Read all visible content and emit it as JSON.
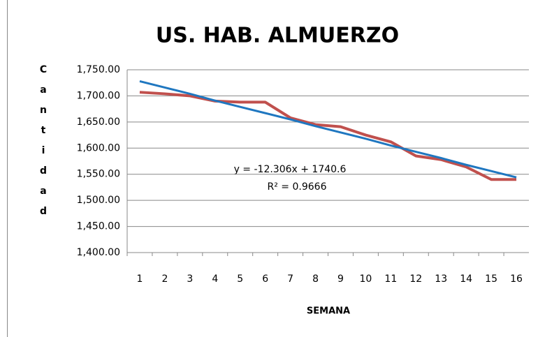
{
  "chart_data": {
    "type": "line",
    "title": "US. HAB. ALMUERZO",
    "x_label": "SEMANA",
    "y_label": "Cantidad",
    "categories": [
      "1",
      "2",
      "3",
      "4",
      "5",
      "6",
      "7",
      "8",
      "9",
      "10",
      "11",
      "12",
      "13",
      "14",
      "15",
      "16"
    ],
    "series": [
      {
        "color": "#c0504d",
        "values": [
          1707,
          1704,
          1700,
          1690,
          1688,
          1688,
          1658,
          1645,
          1641,
          1625,
          1612,
          1585,
          1578,
          1564,
          1540,
          1540
        ]
      },
      {
        "color": "#1f77c0",
        "values": [
          1728,
          1716,
          1704,
          1691,
          1679,
          1667,
          1655,
          1642,
          1630,
          1618,
          1605,
          1593,
          1581,
          1568,
          1556,
          1544
        ]
      }
    ],
    "annotations": [
      "y = -12.306x + 1740.6",
      "R² = 0.9666"
    ],
    "ylim": [
      1400,
      1750
    ],
    "yticks": [
      {
        "value": 1400,
        "label": "1,400.00"
      },
      {
        "value": 1450,
        "label": "1,450.00"
      },
      {
        "value": 1500,
        "label": "1,500.00"
      },
      {
        "value": 1550,
        "label": "1,550.00"
      },
      {
        "value": 1600,
        "label": "1,600.00"
      },
      {
        "value": 1650,
        "label": "1,650.00"
      },
      {
        "value": 1700,
        "label": "1,700.00"
      },
      {
        "value": 1750,
        "label": "1,750.00"
      }
    ],
    "grid": true
  }
}
